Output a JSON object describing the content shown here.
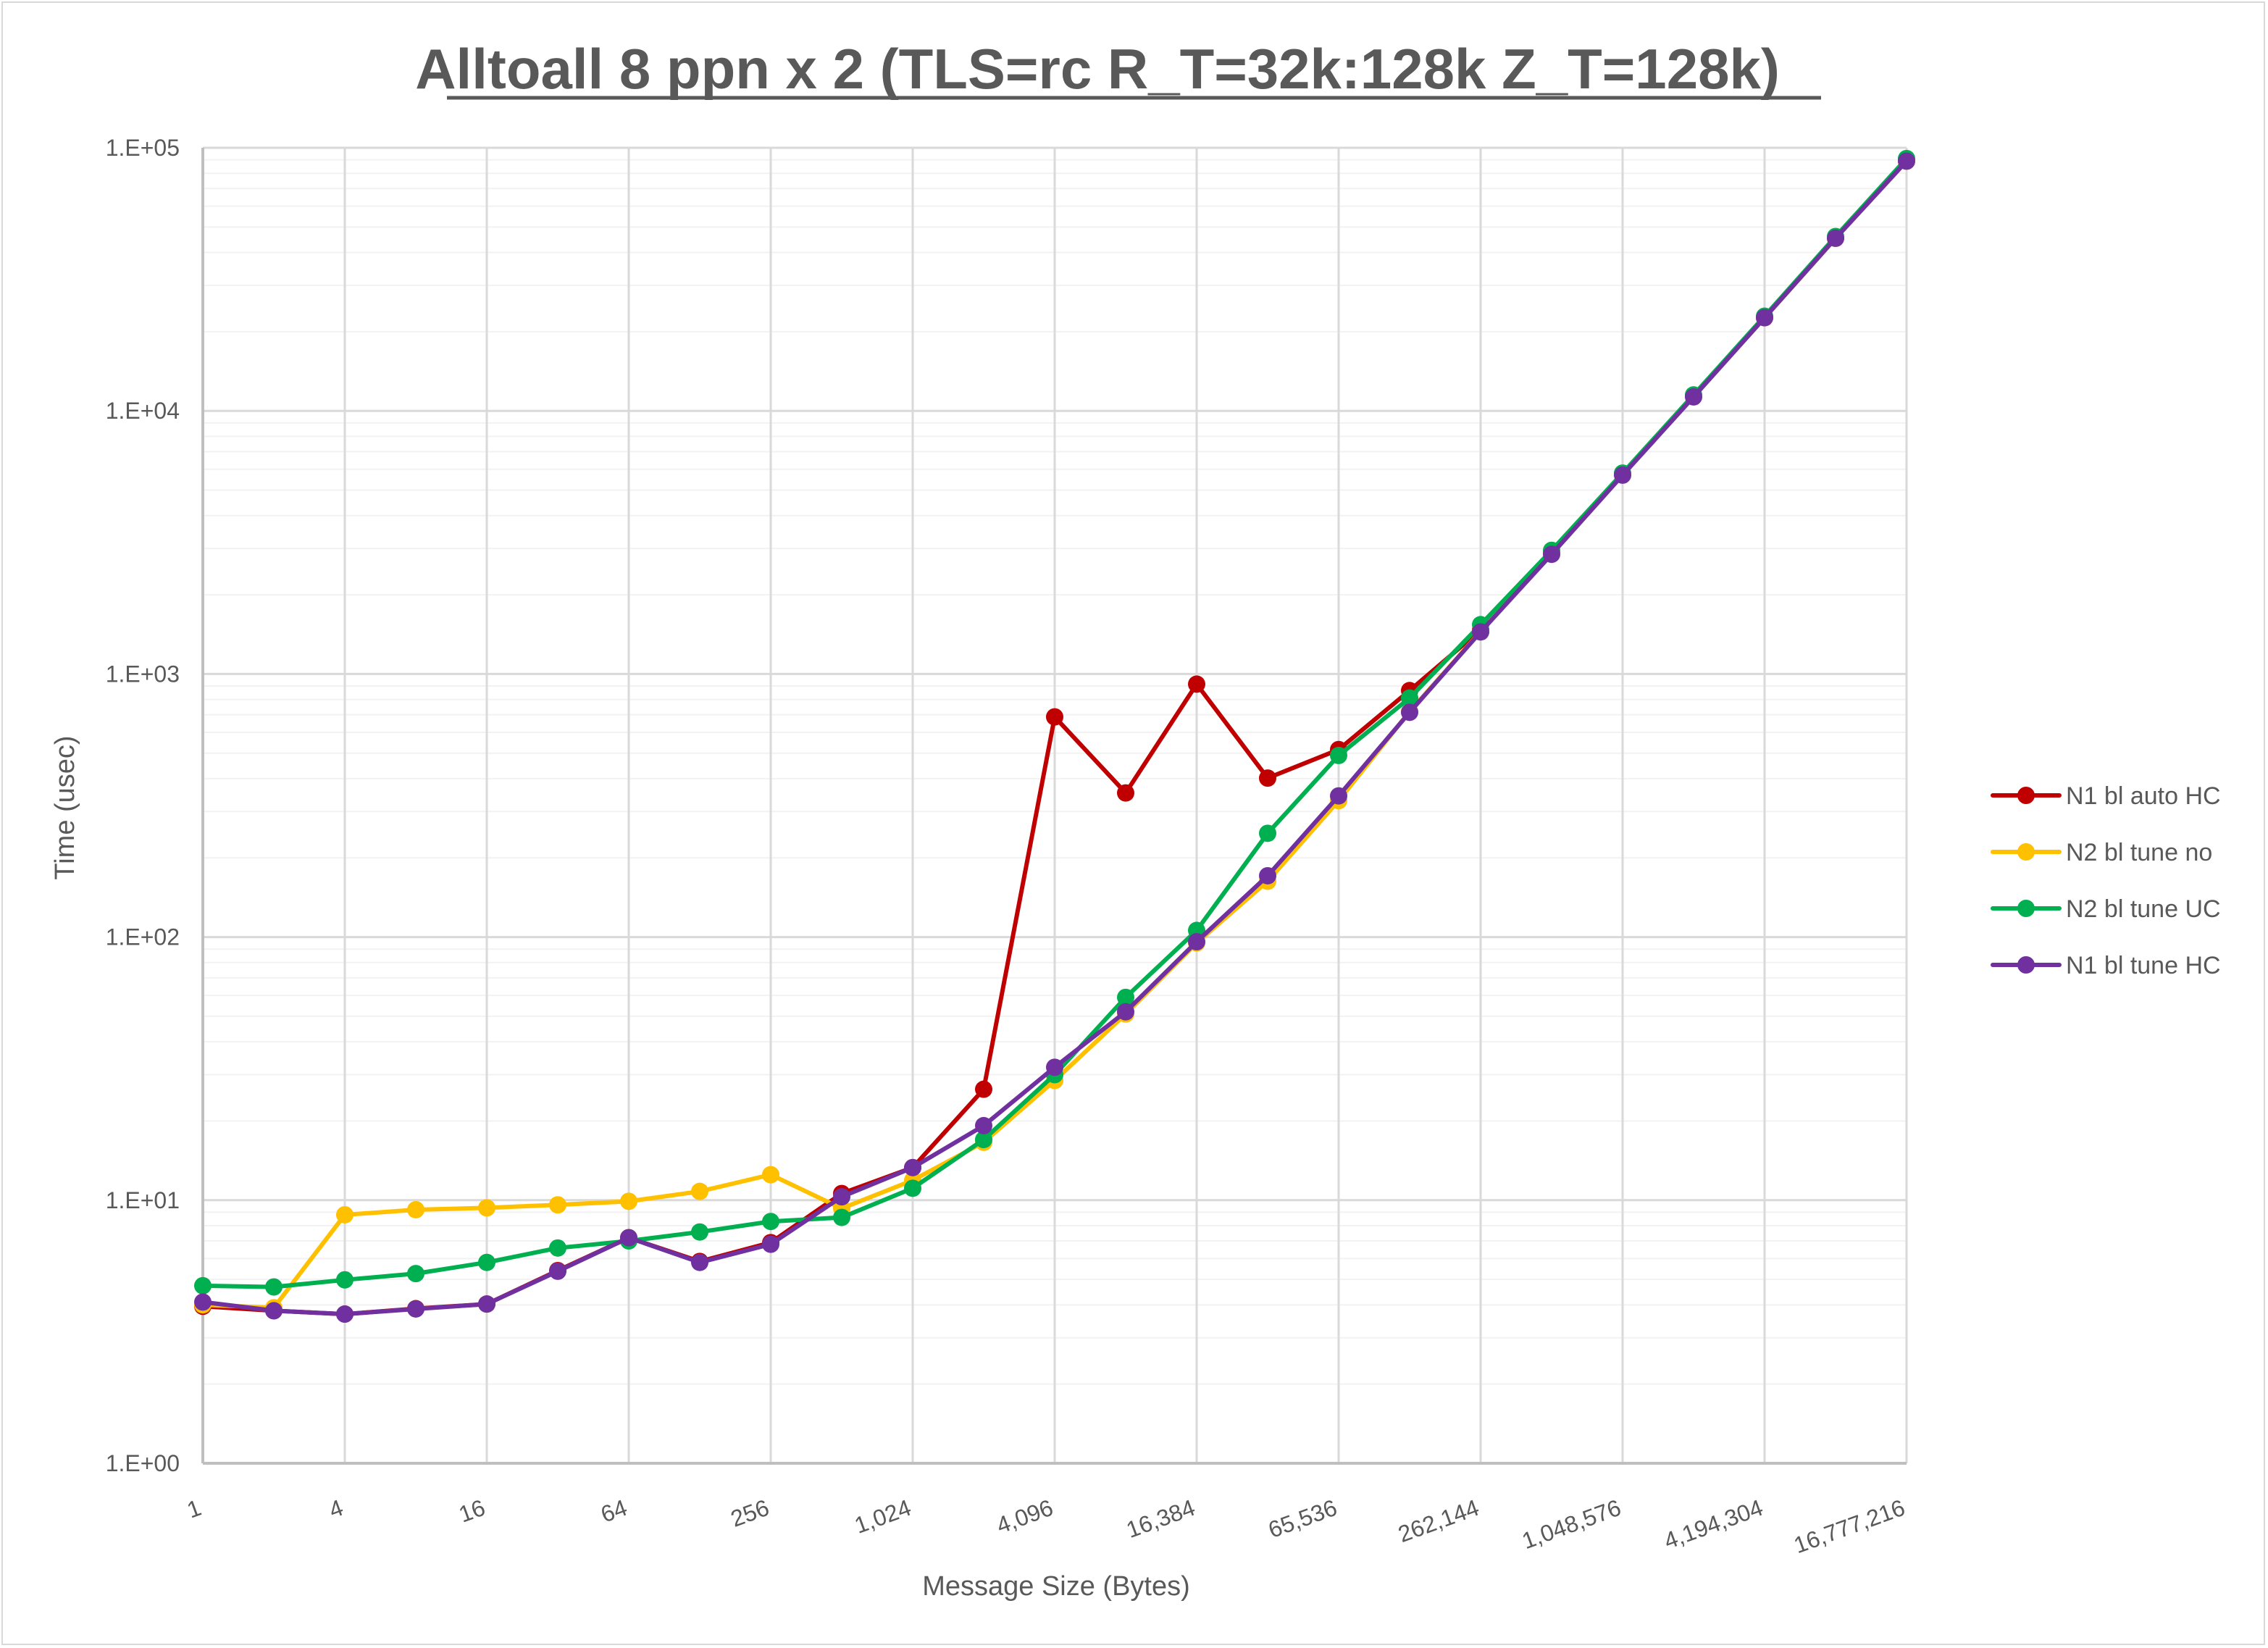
{
  "chart_data": {
    "type": "line",
    "title": "Alltoall 8 ppn x 2 (TLS=rc R_T=32k:128k Z_T=128k)",
    "xlabel": "Message Size (Bytes)",
    "ylabel": "Time (usec)",
    "x_scale": "log2",
    "y_scale": "log10",
    "ylim": [
      1,
      100000
    ],
    "grid": true,
    "legend_position": "right",
    "x": [
      1,
      2,
      4,
      8,
      16,
      32,
      64,
      128,
      256,
      512,
      1024,
      2048,
      4096,
      8192,
      16384,
      32768,
      65536,
      131072,
      262144,
      524288,
      1048576,
      2097152,
      4194304,
      8388608,
      16777216
    ],
    "x_tick_labels": [
      "1",
      "4",
      "16",
      "64",
      "256",
      "1,024",
      "4,096",
      "16,384",
      "65,536",
      "262,144",
      "1,048,576",
      "4,194,304",
      "16,777,216"
    ],
    "x_tick_values": [
      1,
      4,
      16,
      64,
      256,
      1024,
      4096,
      16384,
      65536,
      262144,
      1048576,
      4194304,
      16777216
    ],
    "y_tick_labels": [
      "1.E+00",
      "1.E+01",
      "1.E+02",
      "1.E+03",
      "1.E+04",
      "1.E+05"
    ],
    "y_tick_values": [
      1,
      10,
      100,
      1000,
      10000,
      100000
    ],
    "series": [
      {
        "name": "N1 bl auto HC",
        "color": "#C00000",
        "values": [
          3.95,
          3.8,
          3.69,
          3.87,
          4.03,
          5.4,
          7.2,
          5.85,
          6.9,
          10.6,
          13.3,
          26.4,
          687,
          353,
          915,
          402,
          516,
          865,
          1470,
          2880,
          5720,
          11350,
          22600,
          45300,
          89000
        ]
      },
      {
        "name": "N2 bl tune no",
        "color": "#FFC000",
        "values": [
          4.0,
          3.9,
          8.8,
          9.2,
          9.35,
          9.6,
          9.9,
          10.8,
          12.5,
          9.3,
          11.9,
          16.6,
          28.5,
          51,
          95,
          163,
          330,
          720,
          1450,
          2860,
          5720,
          11350,
          22600,
          45300,
          89000
        ]
      },
      {
        "name": "N2 bl tune UC",
        "color": "#00B050",
        "values": [
          4.73,
          4.68,
          4.98,
          5.26,
          5.8,
          6.58,
          7.0,
          7.57,
          8.3,
          8.6,
          11.1,
          17.0,
          30,
          59,
          106,
          248,
          490,
          810,
          1540,
          2950,
          5800,
          11500,
          22900,
          46000,
          91000
        ]
      },
      {
        "name": "N1 bl tune HC",
        "color": "#7030A0",
        "values": [
          4.1,
          3.8,
          3.69,
          3.86,
          4.03,
          5.37,
          7.2,
          5.8,
          6.8,
          10.3,
          13.3,
          19.2,
          32,
          52,
          96,
          171,
          344,
          715,
          1445,
          2850,
          5700,
          11300,
          22600,
          45300,
          89000
        ]
      }
    ]
  }
}
